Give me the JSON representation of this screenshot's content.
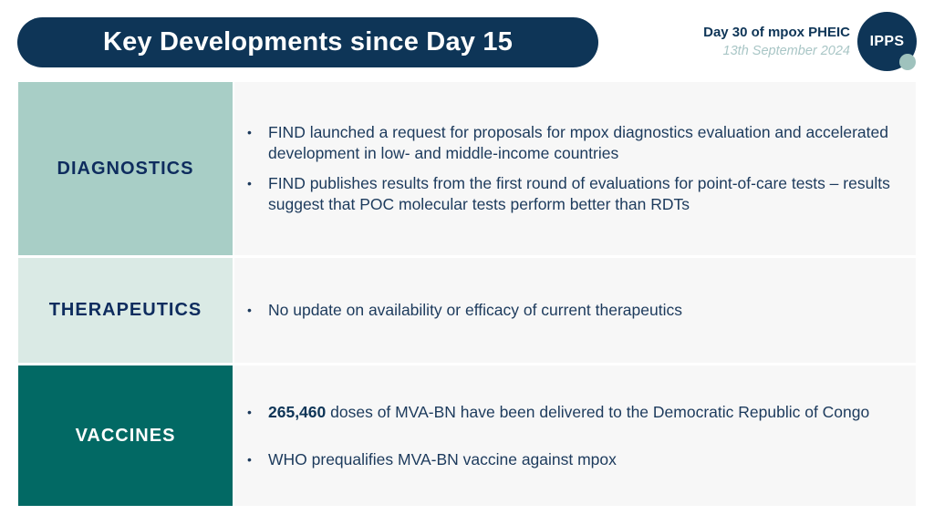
{
  "header": {
    "title": "Key Developments since Day 15",
    "day_label": "Day 30 of mpox PHEIC",
    "date": "13th September 2024",
    "logo_text": "IPPS"
  },
  "colors": {
    "navy": "#0e3557",
    "diagnostics_bg": "#a8cec6",
    "therapeutics_bg": "#daeae5",
    "vaccines_bg": "#026964",
    "content_bg": "#f7f7f7"
  },
  "sections": [
    {
      "label": "DIAGNOSTICS",
      "bullets": [
        "FIND launched a request for proposals for mpox diagnostics evaluation and accelerated development in low- and middle-income countries",
        "FIND publishes results from the first round of evaluations for point-of-care tests – results suggest that POC molecular tests perform better than RDTs"
      ]
    },
    {
      "label": "THERAPEUTICS",
      "bullets": [
        "No update on availability or efficacy of current therapeutics"
      ]
    },
    {
      "label": "VACCINES",
      "bullets": [
        {
          "bold": "265,460",
          "text": " doses of MVA-BN have been delivered to the Democratic Republic of Congo"
        },
        "WHO prequalifies MVA-BN vaccine against mpox"
      ]
    }
  ],
  "bullet_glyph": "•"
}
